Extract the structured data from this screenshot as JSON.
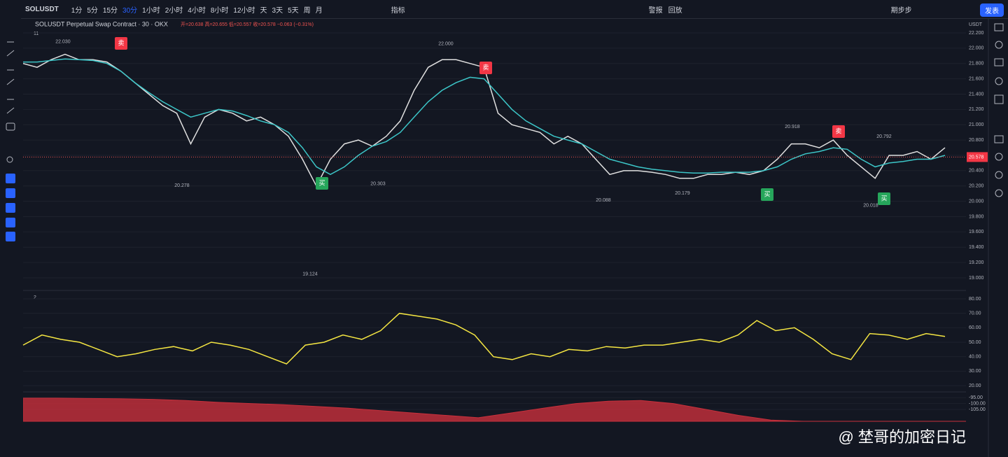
{
  "toolbar": {
    "symbol": "SOLUSDT",
    "intervals": [
      "1分",
      "5分",
      "15分",
      "30分",
      "1小时",
      "2小时",
      "4小时",
      "8小时",
      "12小时",
      "天",
      "3天",
      "5天",
      "周",
      "月"
    ],
    "indicators": "指标",
    "alert": "警报",
    "replay": "回放",
    "user": "期步步",
    "publish": "发表"
  },
  "chart_data": [
    {
      "type": "line",
      "title": "SOLUSDT Perpetual Swap Contract · 30 · OKX",
      "ohlc": "开=20.638 高=20.655 低=20.557 收=20.578 −0.063 (−0.31%)",
      "pane_label": "11",
      "unit": "USDT",
      "ylim": [
        19.0,
        22.2
      ],
      "yticks": [
        {
          "value": 22.2,
          "label": "22.200"
        },
        {
          "value": 22.0,
          "label": "22.000"
        },
        {
          "value": 21.8,
          "label": "21.800"
        },
        {
          "value": 21.6,
          "label": "21.600"
        },
        {
          "value": 21.4,
          "label": "21.400"
        },
        {
          "value": 21.2,
          "label": "21.200"
        },
        {
          "value": 21.0,
          "label": "21.000"
        },
        {
          "value": 20.8,
          "label": "20.800"
        },
        {
          "value": 20.6,
          "label": "20.600"
        },
        {
          "value": 20.4,
          "label": "20.400"
        },
        {
          "value": 20.2,
          "label": "20.200"
        },
        {
          "value": 20.0,
          "label": "20.000"
        },
        {
          "value": 19.8,
          "label": "19.800"
        },
        {
          "value": 19.6,
          "label": "19.600"
        },
        {
          "value": 19.4,
          "label": "19.400"
        },
        {
          "value": 19.2,
          "label": "19.200"
        },
        {
          "value": 19.0,
          "label": "19.000"
        }
      ],
      "last_price": {
        "value": 20.578,
        "label": "20.578"
      },
      "series": [
        {
          "name": "price",
          "color": "#e0e0e0",
          "values": [
            21.8,
            21.75,
            21.85,
            21.92,
            21.85,
            21.85,
            21.82,
            21.7,
            21.55,
            21.4,
            21.25,
            21.15,
            20.75,
            21.1,
            21.2,
            21.15,
            21.05,
            21.1,
            21.0,
            20.85,
            20.55,
            20.2,
            20.55,
            20.75,
            20.8,
            20.72,
            20.85,
            21.05,
            21.45,
            21.75,
            21.85,
            21.85,
            21.8,
            21.75,
            21.15,
            21.0,
            20.95,
            20.9,
            20.75,
            20.85,
            20.75,
            20.55,
            20.35,
            20.4,
            20.4,
            20.38,
            20.35,
            20.3,
            20.3,
            20.35,
            20.35,
            20.38,
            20.35,
            20.4,
            20.55,
            20.75,
            20.75,
            20.7,
            20.8,
            20.6,
            20.45,
            20.3,
            20.6,
            20.6,
            20.65,
            20.55,
            20.7
          ]
        },
        {
          "name": "ma",
          "color": "#3cc6c8",
          "values": [
            21.82,
            21.82,
            21.84,
            21.86,
            21.85,
            21.84,
            21.8,
            21.7,
            21.55,
            21.42,
            21.3,
            21.2,
            21.1,
            21.15,
            21.2,
            21.18,
            21.12,
            21.05,
            21.0,
            20.9,
            20.7,
            20.45,
            20.35,
            20.45,
            20.6,
            20.72,
            20.78,
            20.9,
            21.1,
            21.3,
            21.45,
            21.55,
            21.62,
            21.6,
            21.4,
            21.2,
            21.05,
            20.95,
            20.85,
            20.8,
            20.75,
            20.65,
            20.55,
            20.5,
            20.45,
            20.42,
            20.4,
            20.38,
            20.37,
            20.37,
            20.38,
            20.38,
            20.38,
            20.4,
            20.45,
            20.55,
            20.62,
            20.65,
            20.7,
            20.68,
            20.55,
            20.45,
            20.5,
            20.52,
            20.55,
            20.55,
            20.6
          ]
        }
      ],
      "annotations": [
        {
          "value": 22.03,
          "label": "22.030"
        },
        {
          "value": 22.0,
          "label": "22.000"
        },
        {
          "value": 20.278,
          "label": "20.278"
        },
        {
          "value": 20.303,
          "label": "20.303"
        },
        {
          "value": 19.124,
          "label": "19.124"
        },
        {
          "value": 20.088,
          "label": "20.088"
        },
        {
          "value": 20.179,
          "label": "20.179"
        },
        {
          "value": 20.918,
          "label": "20.918"
        },
        {
          "value": 20.792,
          "label": "20.792"
        },
        {
          "value": 20.018,
          "label": "20.018"
        }
      ],
      "signals": [
        {
          "label": "卖"
        },
        {
          "label": "卖"
        },
        {
          "label": "卖"
        },
        {
          "label": "买"
        },
        {
          "label": "买"
        },
        {
          "label": "买"
        }
      ]
    },
    {
      "type": "line",
      "pane_label": "2",
      "ylim": [
        20,
        80
      ],
      "yticks": [
        {
          "value": 80,
          "label": "80.00"
        },
        {
          "value": 70,
          "label": "70.00"
        },
        {
          "value": 60,
          "label": "60.00"
        },
        {
          "value": 50,
          "label": "50.00"
        },
        {
          "value": 40,
          "label": "40.00"
        },
        {
          "value": 30,
          "label": "30.00"
        },
        {
          "value": 20,
          "label": "20.00"
        }
      ],
      "series": [
        {
          "name": "rsi",
          "color": "#f5e642",
          "values": [
            48,
            55,
            52,
            50,
            45,
            40,
            42,
            45,
            47,
            44,
            50,
            48,
            45,
            40,
            35,
            48,
            50,
            55,
            52,
            58,
            70,
            68,
            66,
            62,
            55,
            40,
            38,
            42,
            40,
            45,
            44,
            47,
            46,
            48,
            48,
            50,
            52,
            50,
            55,
            65,
            58,
            60,
            52,
            42,
            38,
            56,
            55,
            52,
            56,
            54
          ]
        }
      ]
    },
    {
      "type": "area",
      "ylim": [
        -115,
        -92
      ],
      "yticks": [
        {
          "value": -95,
          "label": "-95.00"
        },
        {
          "value": -100,
          "label": "-100.00"
        },
        {
          "value": -105,
          "label": "-105.00"
        }
      ],
      "series": [
        {
          "name": "osc",
          "color": "#c8303c",
          "values": [
            -95.5,
            -95.5,
            -95.8,
            -96,
            -96.5,
            -97.5,
            -99,
            -100,
            -101,
            -102.5,
            -104,
            -106,
            -108,
            -110,
            -112,
            -108,
            -104,
            -100,
            -98,
            -97.5,
            -100,
            -105,
            -110,
            -114,
            -115,
            -115,
            -115,
            -115,
            -115,
            -115
          ]
        }
      ]
    }
  ],
  "watermark": "@ 埜哥的加密日记"
}
